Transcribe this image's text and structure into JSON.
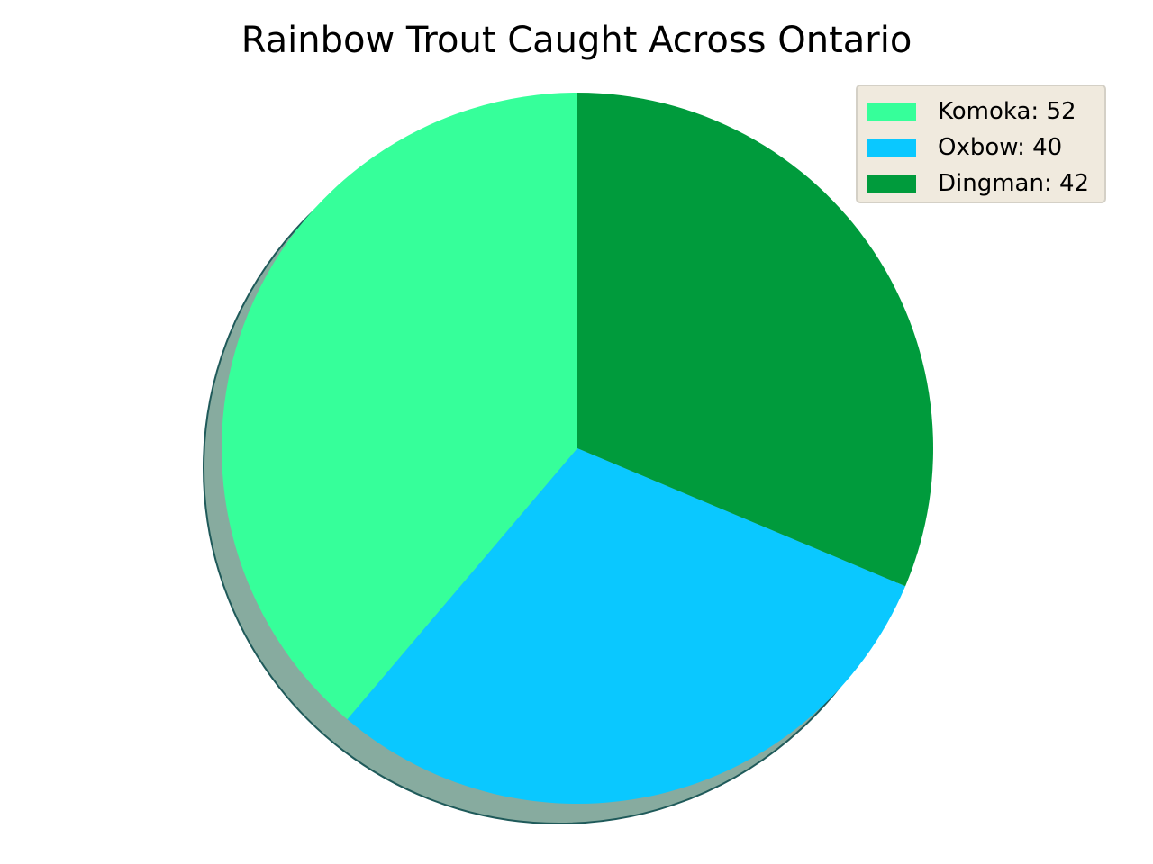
{
  "chart_data": {
    "type": "pie",
    "title": "Rainbow Trout Caught Across Ontario",
    "categories": [
      "Komoka",
      "Oxbow",
      "Dingman"
    ],
    "values": [
      52,
      40,
      42
    ],
    "legend_labels": [
      "Komoka: 52",
      "Oxbow: 40",
      "Dingman: 42"
    ],
    "colors": [
      "#36ff9a",
      "#0ac8ff",
      "#009b3c"
    ],
    "start_angle_deg": 90,
    "direction": "counterclockwise",
    "shadow": true,
    "legend_position": "upper right"
  }
}
